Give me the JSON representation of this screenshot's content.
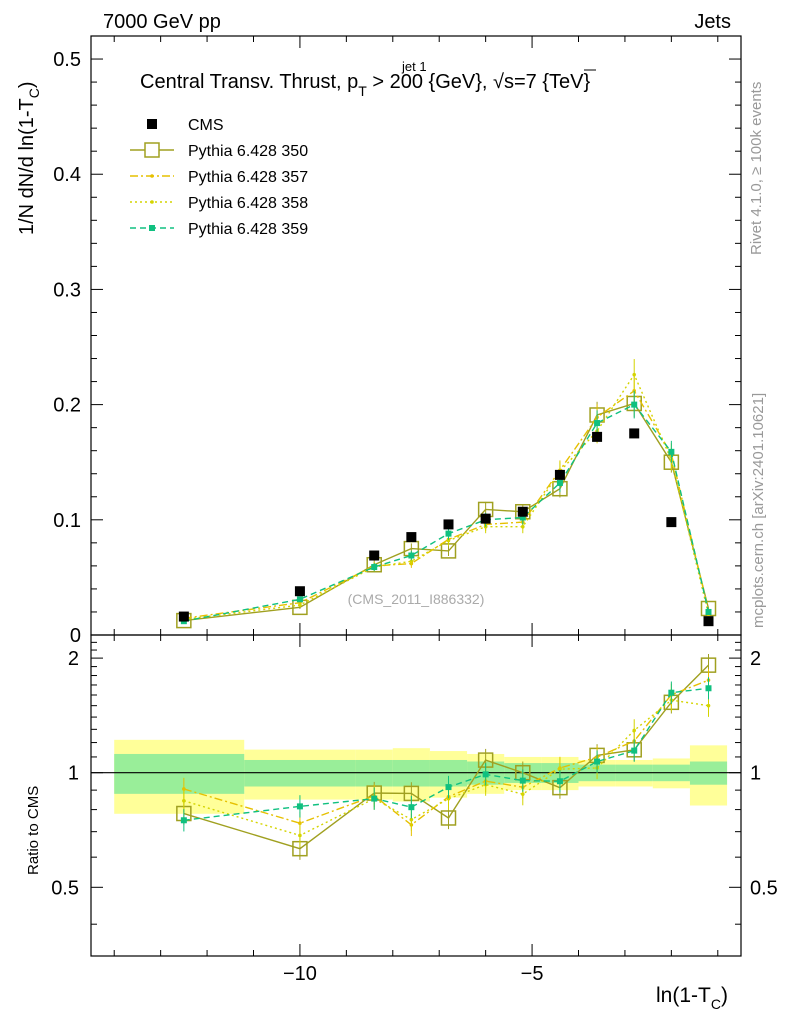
{
  "header": {
    "left": "7000 GeV pp",
    "right": "Jets"
  },
  "side_texts": {
    "rivet": "Rivet 4.1.0, ≥ 100k events",
    "mcplots": "mcplots.cern.ch [arXiv:2401.10621]"
  },
  "chart_data": {
    "type": "line",
    "title": "Central Transv. Thrust, p_T^{jet 1} > 200 {GeV}, √s=7 {TeV}",
    "title_parts": {
      "main": "Central Transv. Thrust, p",
      "sub": "T",
      "sup": "jet 1",
      "after": " > 200 {GeV}, ",
      "sqrt": "√",
      "s_rest": "s=7 {TeV}"
    },
    "watermark": "(CMS_2011_I886332)",
    "xlabel": "ln(1-T_C)",
    "ylabel": "1/N   dN/d ln(1-T_C)",
    "ratio_ylabel": "Ratio to CMS",
    "xlim": [
      -14.5,
      -0.5
    ],
    "ylim": [
      0,
      0.52
    ],
    "ratio_ylim": [
      0.33,
      2.3
    ],
    "x_ticks": [
      -10,
      -5
    ],
    "x_tick_labels": [
      "−10",
      "−5"
    ],
    "y_ticks": [
      0,
      0.1,
      0.2,
      0.3,
      0.4,
      0.5
    ],
    "y_tick_labels": [
      "0",
      "0.1",
      "0.2",
      "0.3",
      "0.4",
      "0.5"
    ],
    "ratio_ticks": [
      0.5,
      1,
      2
    ],
    "ratio_tick_labels": [
      "0.5",
      "1",
      "2"
    ],
    "x": [
      -12.5,
      -10.0,
      -8.4,
      -7.6,
      -6.8,
      -6.0,
      -5.2,
      -4.4,
      -3.6,
      -2.8,
      -2.0,
      -1.2
    ],
    "bin_edges": [
      -14.0,
      -11.2,
      -8.8,
      -8.0,
      -7.2,
      -6.4,
      -5.6,
      -4.8,
      -4.0,
      -3.2,
      -2.4,
      -1.6,
      -0.8
    ],
    "series": [
      {
        "name": "CMS",
        "values": [
          0.016,
          0.038,
          0.069,
          0.085,
          0.096,
          0.101,
          0.107,
          0.139,
          0.172,
          0.175,
          0.098,
          0.012
        ],
        "color": "#000000",
        "style": "data"
      },
      {
        "name": "Pythia 6.428 350",
        "values": [
          0.0125,
          0.024,
          0.061,
          0.075,
          0.073,
          0.109,
          0.107,
          0.127,
          0.191,
          0.201,
          0.15,
          0.023
        ],
        "color": "#a0a020",
        "style": "solid"
      },
      {
        "name": "Pythia 6.428 357",
        "values": [
          0.0145,
          0.028,
          0.06,
          0.062,
          0.083,
          0.096,
          0.098,
          0.143,
          0.189,
          0.212,
          0.157,
          0.021
        ],
        "color": "#e6c000",
        "style": "dashdot"
      },
      {
        "name": "Pythia 6.428 358",
        "values": [
          0.0135,
          0.026,
          0.059,
          0.064,
          0.082,
          0.094,
          0.094,
          0.142,
          0.177,
          0.226,
          0.152,
          0.018
        ],
        "color": "#d4d400",
        "style": "dotted"
      },
      {
        "name": "Pythia 6.428 359",
        "values": [
          0.012,
          0.031,
          0.059,
          0.069,
          0.088,
          0.1,
          0.102,
          0.132,
          0.184,
          0.2,
          0.159,
          0.02
        ],
        "color": "#10c080",
        "style": "dashed"
      }
    ],
    "ratio_band_inner": [
      0.12,
      0.08,
      0.08,
      0.08,
      0.08,
      0.07,
      0.06,
      0.06,
      0.05,
      0.05,
      0.05,
      0.07
    ],
    "ratio_band_outer": [
      0.22,
      0.15,
      0.15,
      0.16,
      0.14,
      0.12,
      0.1,
      0.1,
      0.08,
      0.08,
      0.09,
      0.18
    ],
    "legend": [
      "CMS",
      "Pythia 6.428 350",
      "Pythia 6.428 357",
      "Pythia 6.428 358",
      "Pythia 6.428 359"
    ],
    "legend_position": "top-left",
    "grid": false
  }
}
